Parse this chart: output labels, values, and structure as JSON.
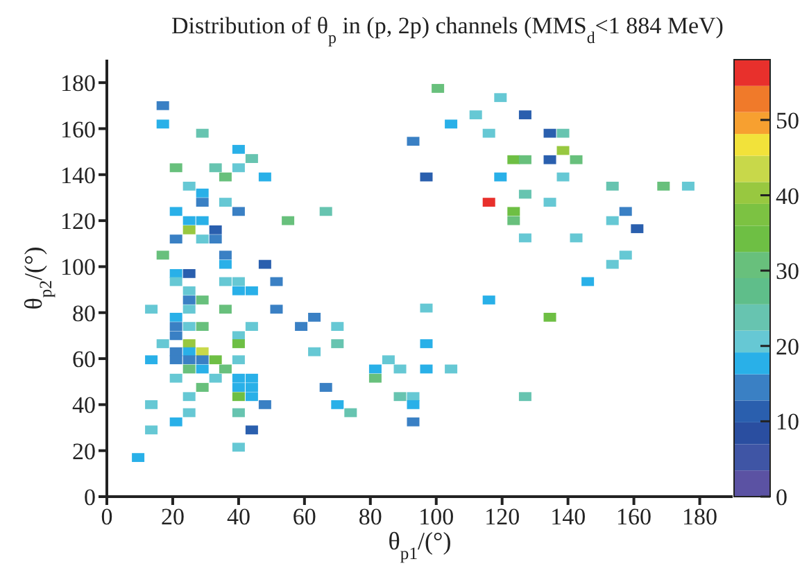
{
  "chart_data": {
    "type": "scatter",
    "title": "Distribution of θ$_{p}$ in (p, 2p) channels (MMS$_{d}$<1 884 MeV)",
    "xlabel": "θ$_{p1}$/(°)",
    "ylabel": "θ$_{p2}$/(°)",
    "marker": "square",
    "xlim": [
      0,
      190
    ],
    "xticks": [
      0,
      20,
      40,
      60,
      80,
      100,
      120,
      140,
      160,
      180
    ],
    "ylim": [
      0,
      190
    ],
    "yticks": [
      0,
      20,
      40,
      60,
      80,
      100,
      120,
      140,
      160,
      180
    ],
    "clim": [
      0,
      58
    ],
    "cticks": [
      0,
      10,
      20,
      30,
      40,
      50
    ],
    "x": [
      17,
      17,
      29,
      40,
      44,
      21,
      33,
      40,
      36,
      48,
      25,
      29,
      29,
      36,
      21,
      40,
      66.5,
      25,
      29,
      55,
      25,
      33,
      21,
      29,
      33,
      17,
      36,
      36,
      48,
      21,
      25,
      21,
      36,
      40,
      51.5,
      25,
      40,
      44,
      25,
      29,
      13.5,
      25,
      36,
      51.5,
      21,
      63,
      21,
      25,
      29,
      44,
      59,
      70,
      21,
      40,
      17,
      25,
      40,
      70,
      21,
      25,
      29,
      63,
      13.5,
      21,
      25,
      29,
      33,
      40,
      85.5,
      25,
      29,
      36,
      81.5,
      89,
      21,
      33,
      40,
      44,
      81.5,
      29,
      40,
      44,
      66.5,
      25,
      40,
      44,
      89,
      13.5,
      48,
      70,
      25,
      40,
      74,
      21,
      13.5,
      44,
      40,
      9.5,
      100.5,
      119.5,
      112,
      127,
      104.5,
      116,
      134.5,
      138.5,
      93,
      138.5,
      123.5,
      127,
      134.5,
      142.5,
      97,
      119.5,
      138.5,
      153.5,
      169,
      176.5,
      127,
      116,
      134.5,
      123.5,
      157.5,
      123.5,
      153.5,
      161,
      127,
      142.5,
      157.5,
      153.5,
      146,
      116,
      97,
      134.5,
      97,
      97,
      104.5,
      93,
      93,
      127,
      93
    ],
    "values": [
      170,
      162,
      158,
      151,
      147,
      143,
      143,
      143,
      139,
      139,
      135,
      132,
      128,
      128,
      124,
      124,
      124,
      120,
      120,
      120,
      116,
      116,
      112,
      112,
      112,
      105,
      105,
      101,
      101,
      97,
      97,
      93.5,
      93.5,
      93.5,
      93.5,
      89.5,
      89.5,
      89.5,
      85.5,
      85.5,
      81.5,
      81.5,
      81.5,
      81.5,
      78,
      78,
      74,
      74,
      74,
      74,
      74,
      74,
      70,
      70,
      66.5,
      66.5,
      66.5,
      66.5,
      63,
      63,
      63,
      63,
      59.5,
      59.5,
      59.5,
      59.5,
      59.5,
      59.5,
      59.5,
      55.5,
      55.5,
      55.5,
      55.5,
      55.5,
      51.5,
      51.5,
      51.5,
      51.5,
      51.5,
      47.5,
      47.5,
      47.5,
      47.5,
      43.5,
      43.5,
      43.5,
      43.5,
      40,
      40,
      40,
      36.5,
      36.5,
      36.5,
      32.5,
      29,
      29,
      21.5,
      17,
      177.5,
      173.5,
      166,
      166,
      162,
      158,
      158,
      158,
      154.5,
      150.5,
      146.5,
      146.5,
      146.5,
      146.5,
      139,
      139,
      139,
      135,
      135,
      135,
      131.5,
      128,
      128,
      124,
      124,
      120,
      120,
      116.5,
      112.5,
      112.5,
      105,
      101,
      93.5,
      85.5,
      82,
      78,
      66.5,
      55.5,
      55.5,
      43.5,
      40,
      43.5,
      32.5
    ],
    "cvalues": [
      13,
      17,
      23,
      17,
      23,
      30,
      23,
      20,
      30,
      17,
      20,
      17,
      13,
      20,
      17,
      13,
      23,
      17,
      17,
      30,
      40,
      10,
      13,
      20,
      13,
      30,
      13,
      17,
      10,
      17,
      10,
      20,
      20,
      20,
      13,
      20,
      17,
      17,
      13,
      30,
      20,
      20,
      30,
      13,
      17,
      13,
      13,
      20,
      30,
      20,
      13,
      20,
      13,
      20,
      20,
      40,
      34,
      23,
      13,
      17,
      43,
      20,
      17,
      13,
      13,
      13,
      34,
      20,
      20,
      30,
      17,
      30,
      17,
      20,
      20,
      20,
      17,
      17,
      30,
      30,
      17,
      17,
      13,
      20,
      34,
      17,
      23,
      20,
      13,
      17,
      20,
      23,
      23,
      17,
      20,
      10,
      20,
      17,
      30,
      20,
      20,
      10,
      17,
      20,
      10,
      23,
      13,
      40,
      34,
      30,
      10,
      30,
      10,
      17,
      20,
      23,
      30,
      20,
      23,
      56,
      20,
      34,
      13,
      30,
      20,
      10,
      20,
      20,
      20,
      20,
      17,
      17,
      20,
      34,
      17,
      17,
      20,
      20,
      17,
      23,
      13
    ]
  }
}
